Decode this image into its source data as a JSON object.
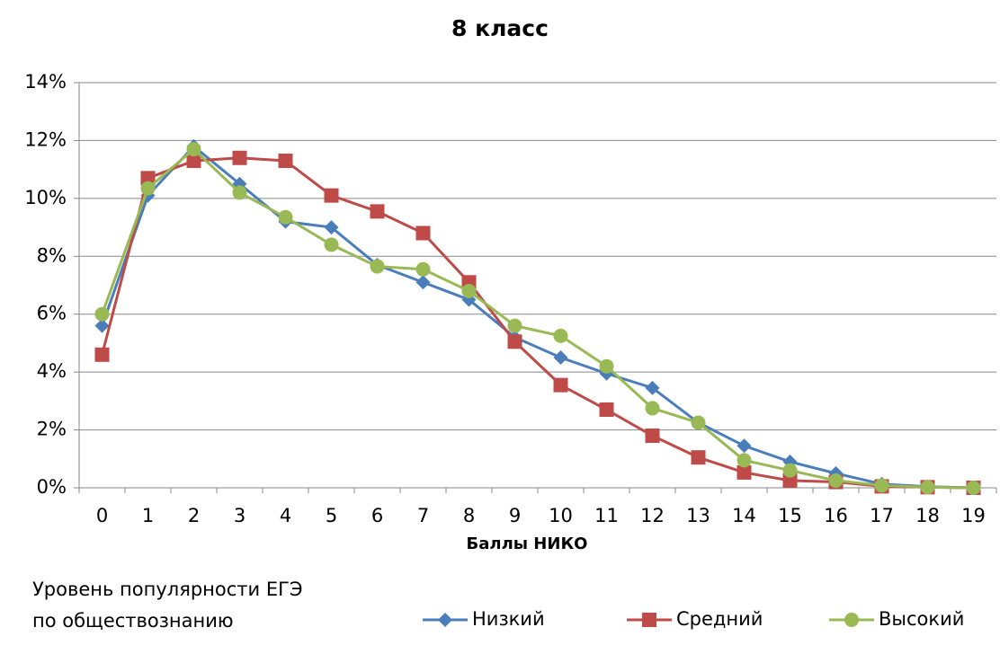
{
  "chart_data": {
    "type": "line",
    "title": "8 класс",
    "x_label": "Баллы НИКО",
    "legend_title": [
      "Уровень популярности ЕГЭ",
      "по обществознанию"
    ],
    "categories": [
      "0",
      "1",
      "2",
      "3",
      "4",
      "5",
      "6",
      "7",
      "8",
      "9",
      "10",
      "11",
      "12",
      "13",
      "14",
      "15",
      "16",
      "17",
      "18",
      "19"
    ],
    "ylim": [
      0,
      14
    ],
    "yticks": [
      {
        "value": 0,
        "label": "0%"
      },
      {
        "value": 2,
        "label": "2%"
      },
      {
        "value": 4,
        "label": "4%"
      },
      {
        "value": 6,
        "label": "6%"
      },
      {
        "value": 8,
        "label": "8%"
      },
      {
        "value": 10,
        "label": "10%"
      },
      {
        "value": 12,
        "label": "12%"
      },
      {
        "value": 14,
        "label": "14%"
      }
    ],
    "grid": true,
    "legend": "bottom",
    "series": [
      {
        "name": "Низкий",
        "color": "#4a7ebb",
        "marker": "diamond",
        "values": [
          5.6,
          10.1,
          11.8,
          10.5,
          9.2,
          9.0,
          7.7,
          7.1,
          6.5,
          5.2,
          4.5,
          3.95,
          3.45,
          2.25,
          1.45,
          0.9,
          0.5,
          0.13,
          0.04,
          0.0
        ]
      },
      {
        "name": "Средний",
        "color": "#be4b48",
        "marker": "square",
        "values": [
          4.6,
          10.7,
          11.3,
          11.4,
          11.3,
          10.1,
          9.55,
          8.8,
          7.1,
          5.05,
          3.55,
          2.7,
          1.8,
          1.05,
          0.53,
          0.25,
          0.2,
          0.05,
          0.02,
          0.0
        ]
      },
      {
        "name": "Высокий",
        "color": "#98b954",
        "marker": "circle",
        "values": [
          6.0,
          10.35,
          11.7,
          10.2,
          9.35,
          8.4,
          7.65,
          7.55,
          6.8,
          5.6,
          5.25,
          4.2,
          2.75,
          2.25,
          0.95,
          0.6,
          0.25,
          0.08,
          0.02,
          0.0
        ]
      }
    ]
  }
}
